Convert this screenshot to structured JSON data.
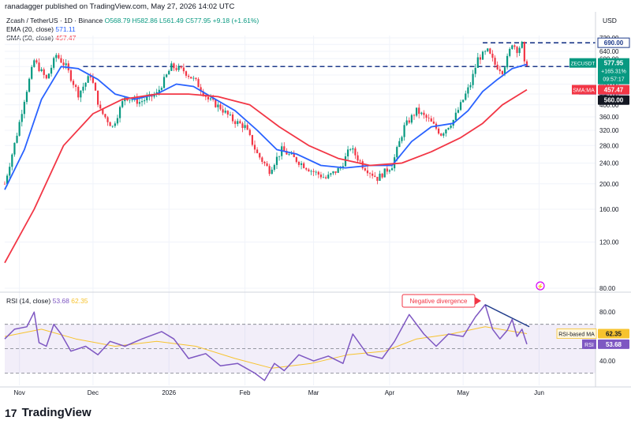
{
  "header": {
    "published_by": "ranadagger published on TradingView.com, May 27, 2026 14:02 UTC",
    "symbol_line": "Zcash / TetherUS · 1D · Binance",
    "ohlc": "O568.79  H582.86  L561.49  C577.95  +9.18 (+1.61%)",
    "ema_label": "EMA (20, close)",
    "ema_value": "571.11",
    "sma_label": "SMA (50, close)",
    "sma_value": "457.47",
    "currency": "USD"
  },
  "colors": {
    "up": "#089981",
    "down": "#f23645",
    "ema": "#2962ff",
    "sma": "#f23645",
    "level": "#1e3a8a",
    "rsi": "#7e57c2",
    "rsi_ma": "#f7c32e",
    "annotation": "#f23645"
  },
  "price_labels": {
    "ticker_badge": "ZECUSDT",
    "last_price": "577.95",
    "change_pct": "+165.31%",
    "countdown": "09:57:17",
    "ema_tag": "EMA",
    "ema_val": "571.11",
    "level_690": "690.00",
    "level_560": "560.00",
    "sma_tag": "SMA:MA",
    "sma_val": "457.47"
  },
  "rsi_panel": {
    "label": "RSI (14, close)",
    "value_1": "53.68",
    "value_2": "62.35",
    "ma_tag": "RSI-based MA",
    "ma_value": "62.35",
    "rsi_tag": "RSI",
    "rsi_value": "53.68",
    "annotation": "Negative divergence"
  },
  "footer": {
    "brand": "TradingView"
  },
  "chart_data": {
    "type": "candlestick",
    "title": "Zcash / TetherUS · 1D · Binance",
    "price_axis": {
      "ticks": [
        80,
        120,
        160,
        200,
        240,
        280,
        320,
        360,
        400,
        440,
        480,
        520,
        560,
        600,
        640,
        680,
        720
      ],
      "tick_labels": [
        "80.00",
        "120.00",
        "160.00",
        "200.00",
        "240.00",
        "280.00",
        "320.00",
        "360.00",
        "400.00",
        "440.00",
        "480.00",
        "520.00",
        "560.00",
        "600.00",
        "640.00",
        "680.00",
        "720.00"
      ],
      "scale": "log"
    },
    "rsi_axis": {
      "ticks": [
        40,
        80
      ],
      "tick_labels": [
        "40.00",
        "80.00"
      ],
      "ylim": [
        20,
        95
      ],
      "band": [
        30,
        70
      ]
    },
    "x_axis": {
      "tick_labels": [
        "Nov",
        "Dec",
        "2026",
        "Feb",
        "Mar",
        "Apr",
        "May",
        "Jun"
      ],
      "tick_dates": [
        "2025-11-01",
        "2025-12-01",
        "2026-01-01",
        "2026-02-01",
        "2026-03-01",
        "2026-04-01",
        "2026-05-01",
        "2026-06-01"
      ],
      "start": "2025-10-26",
      "end": "2026-06-24"
    },
    "horizontal_levels": [
      {
        "value": 690,
        "start": "2026-05-09"
      },
      {
        "value": 560,
        "start": "2025-11-27"
      }
    ],
    "price_path": [
      {
        "date": "2025-10-26",
        "value": 200
      },
      {
        "date": "2025-10-31",
        "value": 310
      },
      {
        "date": "2025-11-03",
        "value": 420
      },
      {
        "date": "2025-11-07",
        "value": 590
      },
      {
        "date": "2025-11-12",
        "value": 500
      },
      {
        "date": "2025-11-16",
        "value": 620
      },
      {
        "date": "2025-11-20",
        "value": 560
      },
      {
        "date": "2025-11-25",
        "value": 440
      },
      {
        "date": "2025-11-30",
        "value": 520
      },
      {
        "date": "2025-12-04",
        "value": 380
      },
      {
        "date": "2025-12-09",
        "value": 330
      },
      {
        "date": "2025-12-14",
        "value": 430
      },
      {
        "date": "2025-12-20",
        "value": 410
      },
      {
        "date": "2025-12-27",
        "value": 440
      },
      {
        "date": "2026-01-02",
        "value": 560
      },
      {
        "date": "2026-01-07",
        "value": 540
      },
      {
        "date": "2026-01-12",
        "value": 490
      },
      {
        "date": "2026-01-17",
        "value": 420
      },
      {
        "date": "2026-01-22",
        "value": 390
      },
      {
        "date": "2026-01-27",
        "value": 350
      },
      {
        "date": "2026-02-01",
        "value": 330
      },
      {
        "date": "2026-02-06",
        "value": 260
      },
      {
        "date": "2026-02-11",
        "value": 225
      },
      {
        "date": "2026-02-16",
        "value": 270
      },
      {
        "date": "2026-02-21",
        "value": 250
      },
      {
        "date": "2026-02-28",
        "value": 225
      },
      {
        "date": "2026-03-06",
        "value": 210
      },
      {
        "date": "2026-03-12",
        "value": 230
      },
      {
        "date": "2026-03-16",
        "value": 275
      },
      {
        "date": "2026-03-21",
        "value": 235
      },
      {
        "date": "2026-03-27",
        "value": 210
      },
      {
        "date": "2026-04-02",
        "value": 235
      },
      {
        "date": "2026-04-07",
        "value": 330
      },
      {
        "date": "2026-04-12",
        "value": 380
      },
      {
        "date": "2026-04-17",
        "value": 350
      },
      {
        "date": "2026-04-22",
        "value": 310
      },
      {
        "date": "2026-04-27",
        "value": 350
      },
      {
        "date": "2026-04-30",
        "value": 400
      },
      {
        "date": "2026-05-04",
        "value": 480
      },
      {
        "date": "2026-05-07",
        "value": 600
      },
      {
        "date": "2026-05-11",
        "value": 640
      },
      {
        "date": "2026-05-14",
        "value": 570
      },
      {
        "date": "2026-05-17",
        "value": 540
      },
      {
        "date": "2026-05-19",
        "value": 600
      },
      {
        "date": "2026-05-21",
        "value": 690
      },
      {
        "date": "2026-05-23",
        "value": 650
      },
      {
        "date": "2026-05-25",
        "value": 680
      },
      {
        "date": "2026-05-26",
        "value": 570
      },
      {
        "date": "2026-05-27",
        "value": 578
      }
    ],
    "ema20_path": [
      {
        "date": "2025-10-26",
        "value": 190
      },
      {
        "date": "2025-11-03",
        "value": 270
      },
      {
        "date": "2025-11-10",
        "value": 420
      },
      {
        "date": "2025-11-18",
        "value": 560
      },
      {
        "date": "2025-11-25",
        "value": 550
      },
      {
        "date": "2025-12-03",
        "value": 500
      },
      {
        "date": "2025-12-10",
        "value": 440
      },
      {
        "date": "2025-12-18",
        "value": 420
      },
      {
        "date": "2025-12-27",
        "value": 440
      },
      {
        "date": "2026-01-04",
        "value": 480
      },
      {
        "date": "2026-01-11",
        "value": 470
      },
      {
        "date": "2026-01-20",
        "value": 420
      },
      {
        "date": "2026-01-28",
        "value": 380
      },
      {
        "date": "2026-02-06",
        "value": 320
      },
      {
        "date": "2026-02-14",
        "value": 270
      },
      {
        "date": "2026-02-22",
        "value": 260
      },
      {
        "date": "2026-03-04",
        "value": 235
      },
      {
        "date": "2026-03-14",
        "value": 230
      },
      {
        "date": "2026-03-24",
        "value": 235
      },
      {
        "date": "2026-04-02",
        "value": 235
      },
      {
        "date": "2026-04-10",
        "value": 290
      },
      {
        "date": "2026-04-18",
        "value": 330
      },
      {
        "date": "2026-04-27",
        "value": 340
      },
      {
        "date": "2026-05-03",
        "value": 380
      },
      {
        "date": "2026-05-09",
        "value": 450
      },
      {
        "date": "2026-05-15",
        "value": 500
      },
      {
        "date": "2026-05-21",
        "value": 550
      },
      {
        "date": "2026-05-27",
        "value": 571
      }
    ],
    "sma50_path": [
      {
        "date": "2025-10-26",
        "value": 100
      },
      {
        "date": "2025-11-07",
        "value": 160
      },
      {
        "date": "2025-11-19",
        "value": 280
      },
      {
        "date": "2025-12-01",
        "value": 370
      },
      {
        "date": "2025-12-13",
        "value": 420
      },
      {
        "date": "2025-12-27",
        "value": 440
      },
      {
        "date": "2026-01-09",
        "value": 440
      },
      {
        "date": "2026-01-21",
        "value": 430
      },
      {
        "date": "2026-02-03",
        "value": 400
      },
      {
        "date": "2026-02-15",
        "value": 330
      },
      {
        "date": "2026-02-27",
        "value": 280
      },
      {
        "date": "2026-03-11",
        "value": 250
      },
      {
        "date": "2026-03-24",
        "value": 235
      },
      {
        "date": "2026-04-06",
        "value": 240
      },
      {
        "date": "2026-04-18",
        "value": 265
      },
      {
        "date": "2026-04-30",
        "value": 300
      },
      {
        "date": "2026-05-09",
        "value": 340
      },
      {
        "date": "2026-05-17",
        "value": 400
      },
      {
        "date": "2026-05-27",
        "value": 457
      }
    ],
    "rsi_path": [
      {
        "date": "2025-10-26",
        "value": 58
      },
      {
        "date": "2025-10-30",
        "value": 66
      },
      {
        "date": "2025-11-04",
        "value": 68
      },
      {
        "date": "2025-11-07",
        "value": 80
      },
      {
        "date": "2025-11-09",
        "value": 55
      },
      {
        "date": "2025-11-12",
        "value": 52
      },
      {
        "date": "2025-11-15",
        "value": 70
      },
      {
        "date": "2025-11-18",
        "value": 62
      },
      {
        "date": "2025-11-22",
        "value": 48
      },
      {
        "date": "2025-11-28",
        "value": 52
      },
      {
        "date": "2025-12-03",
        "value": 45
      },
      {
        "date": "2025-12-08",
        "value": 56
      },
      {
        "date": "2025-12-14",
        "value": 52
      },
      {
        "date": "2025-12-21",
        "value": 58
      },
      {
        "date": "2025-12-29",
        "value": 64
      },
      {
        "date": "2026-01-03",
        "value": 58
      },
      {
        "date": "2026-01-09",
        "value": 42
      },
      {
        "date": "2026-01-16",
        "value": 46
      },
      {
        "date": "2026-01-22",
        "value": 36
      },
      {
        "date": "2026-01-29",
        "value": 38
      },
      {
        "date": "2026-02-05",
        "value": 30
      },
      {
        "date": "2026-02-09",
        "value": 24
      },
      {
        "date": "2026-02-13",
        "value": 38
      },
      {
        "date": "2026-02-17",
        "value": 32
      },
      {
        "date": "2026-02-23",
        "value": 45
      },
      {
        "date": "2026-03-01",
        "value": 40
      },
      {
        "date": "2026-03-07",
        "value": 44
      },
      {
        "date": "2026-03-13",
        "value": 38
      },
      {
        "date": "2026-03-17",
        "value": 62
      },
      {
        "date": "2026-03-23",
        "value": 45
      },
      {
        "date": "2026-03-29",
        "value": 42
      },
      {
        "date": "2026-04-03",
        "value": 56
      },
      {
        "date": "2026-04-09",
        "value": 78
      },
      {
        "date": "2026-04-15",
        "value": 62
      },
      {
        "date": "2026-04-20",
        "value": 52
      },
      {
        "date": "2026-04-25",
        "value": 62
      },
      {
        "date": "2026-05-01",
        "value": 60
      },
      {
        "date": "2026-05-06",
        "value": 76
      },
      {
        "date": "2026-05-10",
        "value": 86
      },
      {
        "date": "2026-05-13",
        "value": 66
      },
      {
        "date": "2026-05-16",
        "value": 58
      },
      {
        "date": "2026-05-19",
        "value": 65
      },
      {
        "date": "2026-05-21",
        "value": 74
      },
      {
        "date": "2026-05-23",
        "value": 60
      },
      {
        "date": "2026-05-25",
        "value": 66
      },
      {
        "date": "2026-05-27",
        "value": 53.68
      }
    ],
    "rsi_ma_path": [
      {
        "date": "2025-10-26",
        "value": 60
      },
      {
        "date": "2025-11-10",
        "value": 66
      },
      {
        "date": "2025-11-24",
        "value": 58
      },
      {
        "date": "2025-12-10",
        "value": 52
      },
      {
        "date": "2025-12-27",
        "value": 56
      },
      {
        "date": "2026-01-12",
        "value": 52
      },
      {
        "date": "2026-01-28",
        "value": 42
      },
      {
        "date": "2026-02-12",
        "value": 34
      },
      {
        "date": "2026-02-28",
        "value": 38
      },
      {
        "date": "2026-03-15",
        "value": 45
      },
      {
        "date": "2026-03-30",
        "value": 48
      },
      {
        "date": "2026-04-12",
        "value": 58
      },
      {
        "date": "2026-04-26",
        "value": 62
      },
      {
        "date": "2026-05-10",
        "value": 68
      },
      {
        "date": "2026-05-27",
        "value": 62.35
      }
    ],
    "trendline": [
      {
        "date": "2026-05-10",
        "value": 86
      },
      {
        "date": "2026-05-28",
        "value": 68
      }
    ]
  }
}
